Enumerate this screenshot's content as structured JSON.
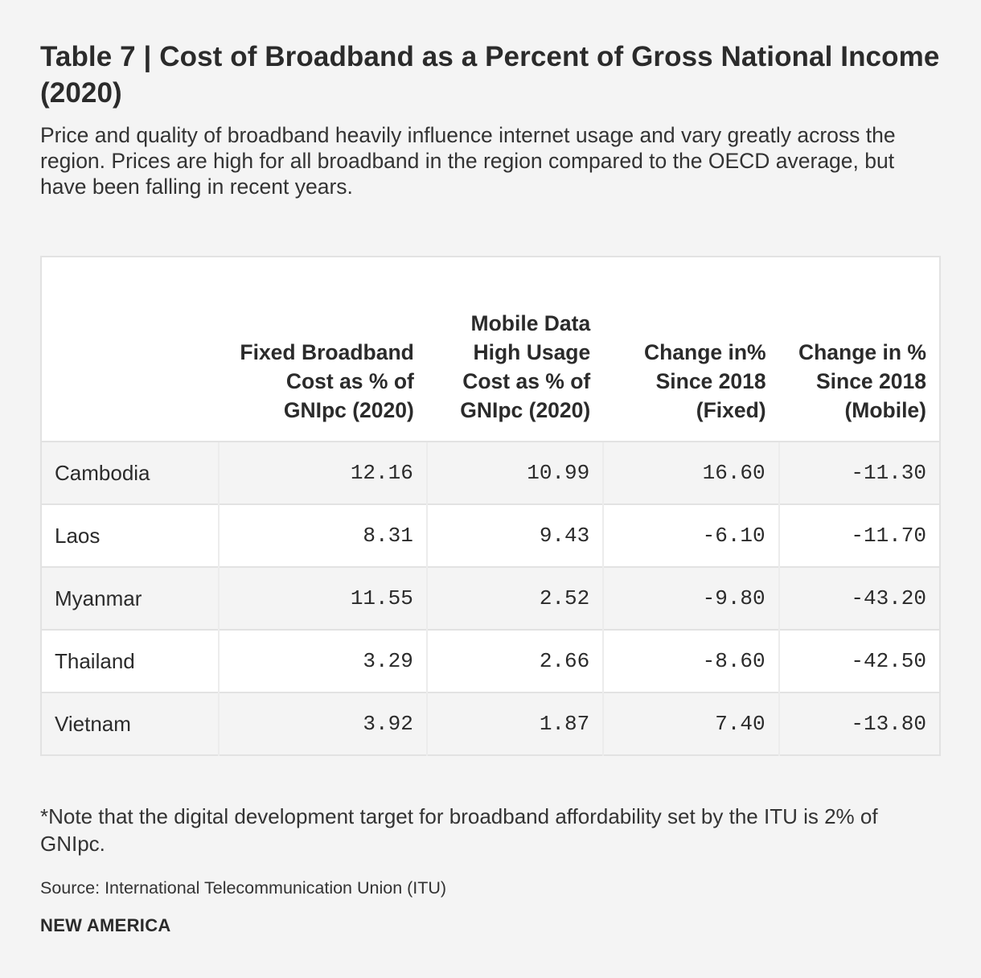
{
  "title": "Table 7 | Cost of Broadband as a Percent of Gross National Income (2020)",
  "subtitle": "Price and quality of broadband heavily influence internet usage and vary greatly across the region. Prices are high for all broadband in the region compared to the OECD average, but have been falling in recent years.",
  "note": "*Note that the digital development target for broadband affordability set by the ITU is 2% of GNIpc.",
  "source": "Source: International Telecommunication Union (ITU)",
  "brand": "NEW AMERICA",
  "chart_data": {
    "type": "table",
    "title": "Table 7 | Cost of Broadband as a Percent of Gross National Income (2020)",
    "columns": [
      "",
      "Fixed Broadband Cost as % of GNIpc (2020)",
      "Mobile Data High Usage Cost as % of GNIpc (2020)",
      "Change in% Since 2018 (Fixed)",
      "Change in % Since 2018 (Mobile)"
    ],
    "rows": [
      {
        "country": "Cambodia",
        "fixed": "12.16",
        "mobile": "10.99",
        "change_fixed": "16.60",
        "change_mobile": "-11.30"
      },
      {
        "country": "Laos",
        "fixed": "8.31",
        "mobile": "9.43",
        "change_fixed": "-6.10",
        "change_mobile": "-11.70"
      },
      {
        "country": "Myanmar",
        "fixed": "11.55",
        "mobile": "2.52",
        "change_fixed": "-9.80",
        "change_mobile": "-43.20"
      },
      {
        "country": "Thailand",
        "fixed": "3.29",
        "mobile": "2.66",
        "change_fixed": "-8.60",
        "change_mobile": "-42.50"
      },
      {
        "country": "Vietnam",
        "fixed": "3.92",
        "mobile": "1.87",
        "change_fixed": "7.40",
        "change_mobile": "-13.80"
      }
    ]
  }
}
